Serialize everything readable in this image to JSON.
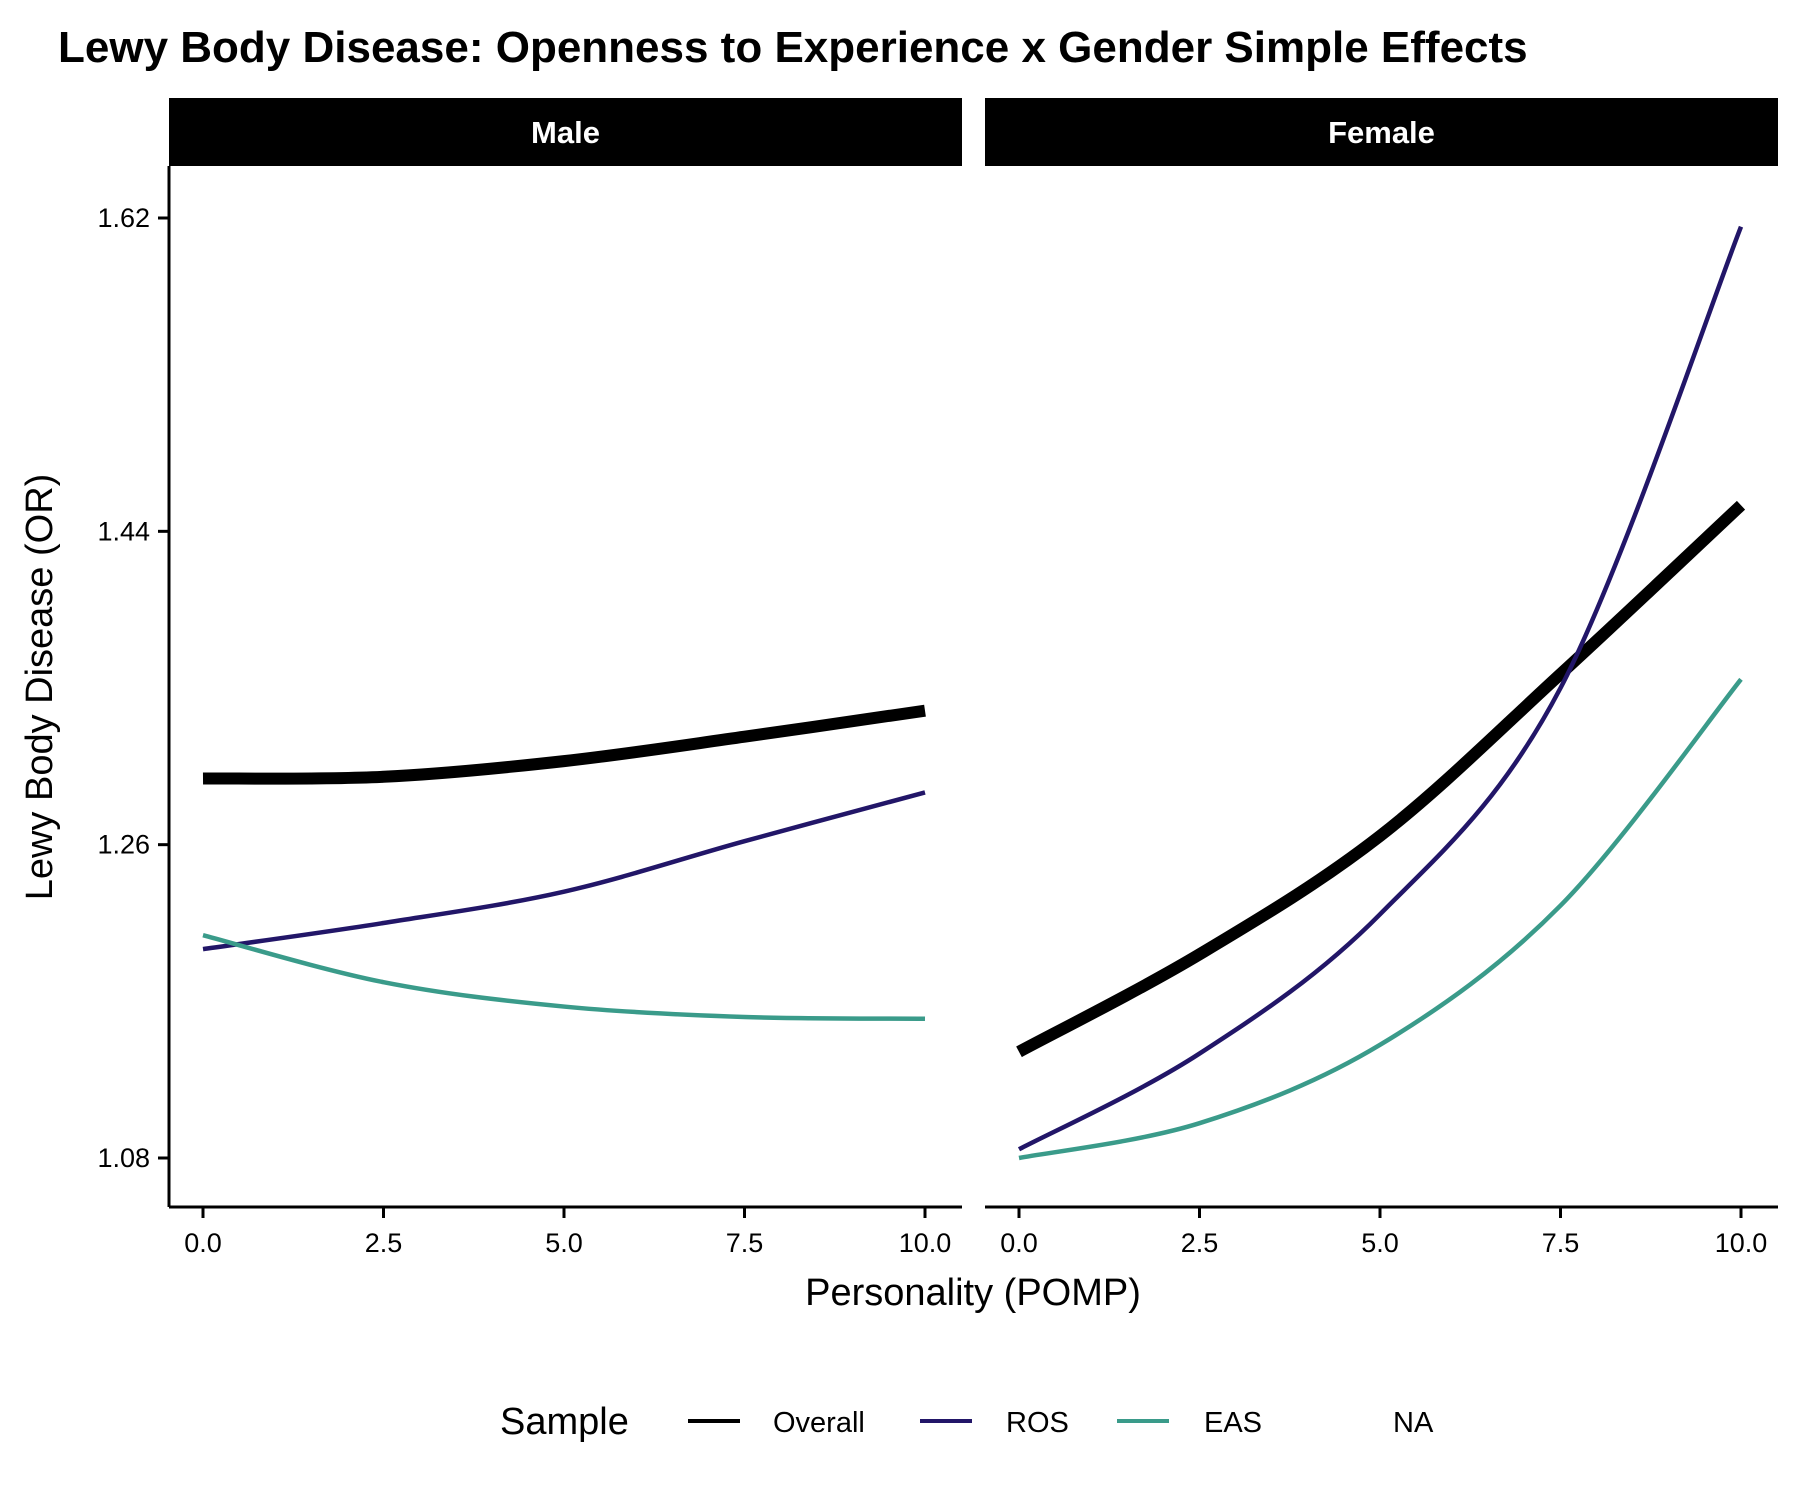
{
  "chart_data": {
    "type": "line",
    "title": "Lewy Body Disease: Openness to Experience x Gender Simple Effects",
    "xlabel": "Personality (POMP)",
    "ylabel": "Lewy Body Disease (OR)",
    "xlim": [
      0,
      10
    ],
    "ylim": [
      1.08,
      1.62
    ],
    "x_ticks": [
      "0.0",
      "2.5",
      "5.0",
      "7.5",
      "10.0"
    ],
    "y_ticks": [
      "1.08",
      "1.26",
      "1.44",
      "1.62"
    ],
    "x": [
      0,
      2.5,
      5,
      7.5,
      10
    ],
    "grid": false,
    "legend": {
      "title": "Sample",
      "position": "bottom",
      "entries": [
        {
          "label": "Overall",
          "color": "#000000"
        },
        {
          "label": "ROS",
          "color": "#221668"
        },
        {
          "label": "EAS",
          "color": "#3a9b8a"
        },
        {
          "label": "NA",
          "color": "none"
        }
      ]
    },
    "panels": [
      {
        "label": "Male",
        "series": [
          {
            "name": "Overall",
            "color": "#000000",
            "values": [
              1.298,
              1.299,
              1.308,
              1.322,
              1.337
            ]
          },
          {
            "name": "ROS",
            "color": "#221668",
            "values": [
              1.2,
              1.215,
              1.233,
              1.262,
              1.29
            ]
          },
          {
            "name": "EAS",
            "color": "#3a9b8a",
            "values": [
              1.208,
              1.181,
              1.167,
              1.161,
              1.16
            ]
          }
        ]
      },
      {
        "label": "Female",
        "series": [
          {
            "name": "Overall",
            "color": "#000000",
            "values": [
              1.141,
              1.197,
              1.265,
              1.358,
              1.455
            ]
          },
          {
            "name": "ROS",
            "color": "#221668",
            "values": [
              1.085,
              1.14,
              1.22,
              1.35,
              1.615
            ]
          },
          {
            "name": "EAS",
            "color": "#3a9b8a",
            "values": [
              1.08,
              1.1,
              1.145,
              1.225,
              1.355
            ]
          }
        ]
      }
    ]
  }
}
